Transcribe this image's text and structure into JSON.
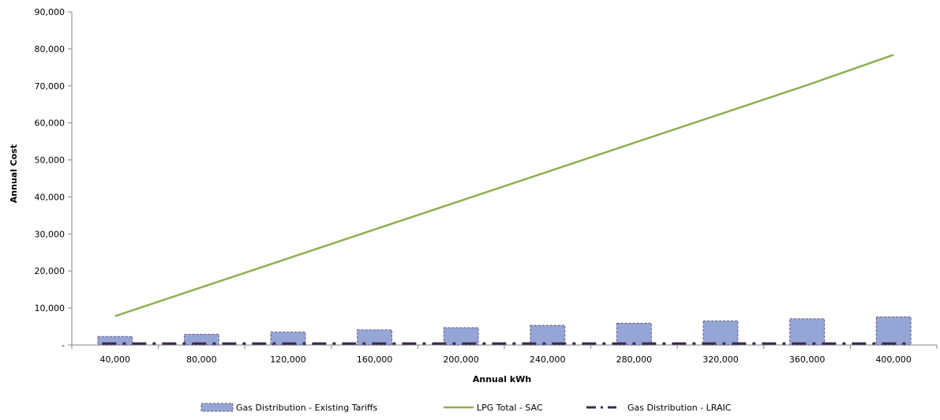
{
  "chart_data": {
    "type": "bar",
    "categories": [
      "40,000",
      "80,000",
      "120,000",
      "160,000",
      "200,000",
      "240,000",
      "280,000",
      "320,000",
      "360,000",
      "400,000"
    ],
    "xlabel": "Annual kWh",
    "ylabel": "Annual Cost",
    "ylim": [
      0,
      90000
    ],
    "yticks": [
      0,
      10000,
      20000,
      30000,
      40000,
      50000,
      60000,
      70000,
      80000,
      90000
    ],
    "ytick_labels": [
      "-",
      "10,000",
      "20,000",
      "30,000",
      "40,000",
      "50,000",
      "60,000",
      "70,000",
      "80,000",
      "90,000"
    ],
    "grid": false,
    "legend_position": "bottom",
    "series": [
      {
        "name": "Gas Distribution - Existing Tariffs",
        "type": "bar",
        "color": "#95a6d6",
        "values": [
          2300,
          2900,
          3500,
          4100,
          4700,
          5300,
          5900,
          6500,
          7100,
          7600
        ]
      },
      {
        "name": "LPG Total - SAC",
        "type": "line",
        "color": "#8caf52",
        "values": [
          7800,
          15600,
          23400,
          31200,
          39000,
          46800,
          54600,
          62400,
          70200,
          78400
        ]
      },
      {
        "name": "Gas Distribution - LRAIC",
        "type": "line",
        "style": "dash-dot",
        "color": "#3d2a4e",
        "values": [
          400,
          400,
          400,
          400,
          400,
          400,
          400,
          400,
          400,
          400
        ]
      }
    ]
  }
}
